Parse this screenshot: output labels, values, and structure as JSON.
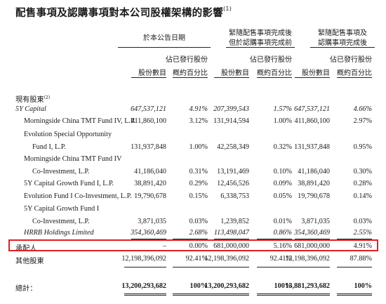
{
  "title": "配售事項及認購事項對本公司股權架構的影響",
  "title_note": "(1)",
  "headers": {
    "group1": [
      "於本公告日期"
    ],
    "group2": [
      "緊隨配售事項完成後",
      "但於認購事項完成前"
    ],
    "group3": [
      "緊隨配售事項及",
      "認購事項完成後"
    ],
    "col_shares": "股份數目",
    "col_pct": [
      "佔已發行股份",
      "概約百分比"
    ]
  },
  "section_label": "現有股東",
  "section_note": "(2)",
  "rows": [
    {
      "name": [
        "5Y Capital"
      ],
      "italic": true,
      "c1": "647,537,121",
      "p1": "4.91%",
      "c2": "207,399,543",
      "p2": "1.57%",
      "c3": "647,537,121",
      "p3": "4.66%"
    },
    {
      "name": [
        "Morningside China TMT Fund IV, L.P."
      ],
      "italic": false,
      "c1": "411,860,100",
      "p1": "3.12%",
      "c2": "131,914,594",
      "p2": "1.00%",
      "c3": "411,860,100",
      "p3": "2.97%"
    },
    {
      "name": [
        "Evolution Special Opportunity",
        "Fund I, L.P."
      ],
      "italic": false,
      "c1": "131,937,848",
      "p1": "1.00%",
      "c2": "42,258,349",
      "p2": "0.32%",
      "c3": "131,937,848",
      "p3": "0.95%"
    },
    {
      "name": [
        "Morningside China TMT Fund IV",
        "Co-Investment, L.P."
      ],
      "italic": false,
      "c1": "41,186,040",
      "p1": "0.31%",
      "c2": "13,191,469",
      "p2": "0.10%",
      "c3": "41,186,040",
      "p3": "0.30%"
    },
    {
      "name": [
        "5Y Capital Growth Fund I, L.P."
      ],
      "italic": false,
      "c1": "38,891,420",
      "p1": "0.29%",
      "c2": "12,456,526",
      "p2": "0.09%",
      "c3": "38,891,420",
      "p3": "0.28%"
    },
    {
      "name": [
        "Evolution Fund I Co-Investment, L.P."
      ],
      "italic": false,
      "c1": "19,790,678",
      "p1": "0.15%",
      "c2": "6,338,753",
      "p2": "0.05%",
      "c3": "19,790,678",
      "p3": "0.14%"
    },
    {
      "name": [
        "5Y Capital Growth Fund I",
        "Co-Investment, L.P."
      ],
      "italic": false,
      "c1": "3,871,035",
      "p1": "0.03%",
      "c2": "1,239,852",
      "p2": "0.01%",
      "c3": "3,871,035",
      "p3": "0.03%"
    },
    {
      "name": [
        "HRRB Holdings Limited"
      ],
      "italic": true,
      "c1": "354,360,469",
      "p1": "2.68%",
      "c2": "113,498,047",
      "p2": "0.86%",
      "c3": "354,360,469",
      "p3": "2.55%"
    },
    {
      "name": [
        "承配人"
      ],
      "italic": false,
      "c1": "–",
      "p1": "0.00%",
      "c2": "681,000,000",
      "p2": "5.16%",
      "c3": "681,000,000",
      "p3": "4.91%"
    },
    {
      "name": [
        "其他股東"
      ],
      "italic": false,
      "c1": "12,198,396,092",
      "p1": "92.41%",
      "c2": "12,198,396,092",
      "p2": "92.41%",
      "c3": "12,198,396,092",
      "p3": "87.88%"
    }
  ],
  "total": {
    "name": "總計：",
    "c1": "13,200,293,682",
    "p1": "100%",
    "c2": "13,200,293,682",
    "p2": "100%",
    "c3": "13,881,293,682",
    "p3": "100%"
  }
}
